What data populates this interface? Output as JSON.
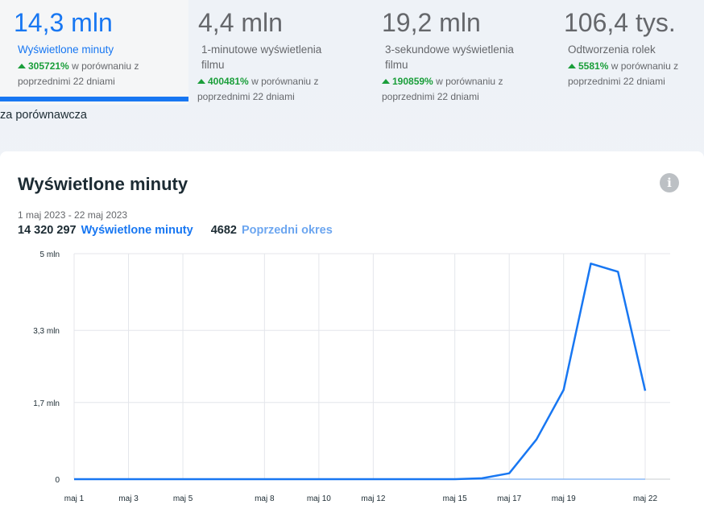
{
  "metrics": [
    {
      "value": "14,3 mln",
      "label": "Wyświetlone minuty",
      "pct": "305721%",
      "compare": "w porównaniu z poprzednimi 22 dniami",
      "active": true
    },
    {
      "value": "4,4 mln",
      "label": "1-minutowe wyświetlenia filmu",
      "pct": "400481%",
      "compare": "w porównaniu z poprzednimi 22 dniami",
      "active": false
    },
    {
      "value": "19,2 mln",
      "label": "3-sekundowe wyświetlenia filmu",
      "pct": "190859%",
      "compare": "w porównaniu z poprzednimi 22 dniami",
      "active": false
    },
    {
      "value": "106,4 tys.",
      "label": "Odtworzenia rolek",
      "pct": "5581%",
      "compare": "w porównaniu z poprzednimi 22 dniami",
      "active": false
    }
  ],
  "comparative_label": "za porównawcza",
  "card": {
    "title": "Wyświetlone minuty",
    "info_icon": "info-icon",
    "date_range": "1 maj 2023 - 22 maj 2023",
    "legend": {
      "current_value": "14 320 297",
      "current_label": "Wyświetlone minuty",
      "previous_value": "4682",
      "previous_label": "Poprzedni okres"
    }
  },
  "chart_data": {
    "type": "line",
    "x": [
      "maj 1",
      "maj 2",
      "maj 3",
      "maj 4",
      "maj 5",
      "maj 6",
      "maj 7",
      "maj 8",
      "maj 9",
      "maj 10",
      "maj 11",
      "maj 12",
      "maj 13",
      "maj 14",
      "maj 15",
      "maj 16",
      "maj 17",
      "maj 18",
      "maj 19",
      "maj 20",
      "maj 21",
      "maj 22"
    ],
    "x_tick_labels": [
      "maj 1",
      "maj 3",
      "maj 5",
      "maj 8",
      "maj 10",
      "maj 12",
      "maj 15",
      "maj 17",
      "maj 19",
      "maj 22"
    ],
    "y_tick_labels": [
      "0",
      "1,7 mln",
      "3,3 mln",
      "5 mln"
    ],
    "y_ticks": [
      0,
      1.7,
      3.3,
      5
    ],
    "ylim": [
      0,
      5
    ],
    "y_unit": "mln",
    "grid": true,
    "series": [
      {
        "name": "Wyświetlone minuty",
        "color": "#1877f2",
        "values": [
          0,
          0,
          0,
          0,
          0,
          0,
          0,
          0,
          0,
          0,
          0,
          0,
          0,
          0,
          0,
          0.02,
          0.13,
          0.88,
          1.98,
          4.78,
          4.6,
          1.96
        ]
      },
      {
        "name": "Poprzedni okres",
        "color": "#8cb9f5",
        "values": [
          0,
          0,
          0,
          0,
          0,
          0,
          0,
          0,
          0,
          0,
          0,
          0,
          0,
          0,
          0,
          0,
          0,
          0,
          0,
          0,
          0,
          0
        ]
      }
    ]
  }
}
